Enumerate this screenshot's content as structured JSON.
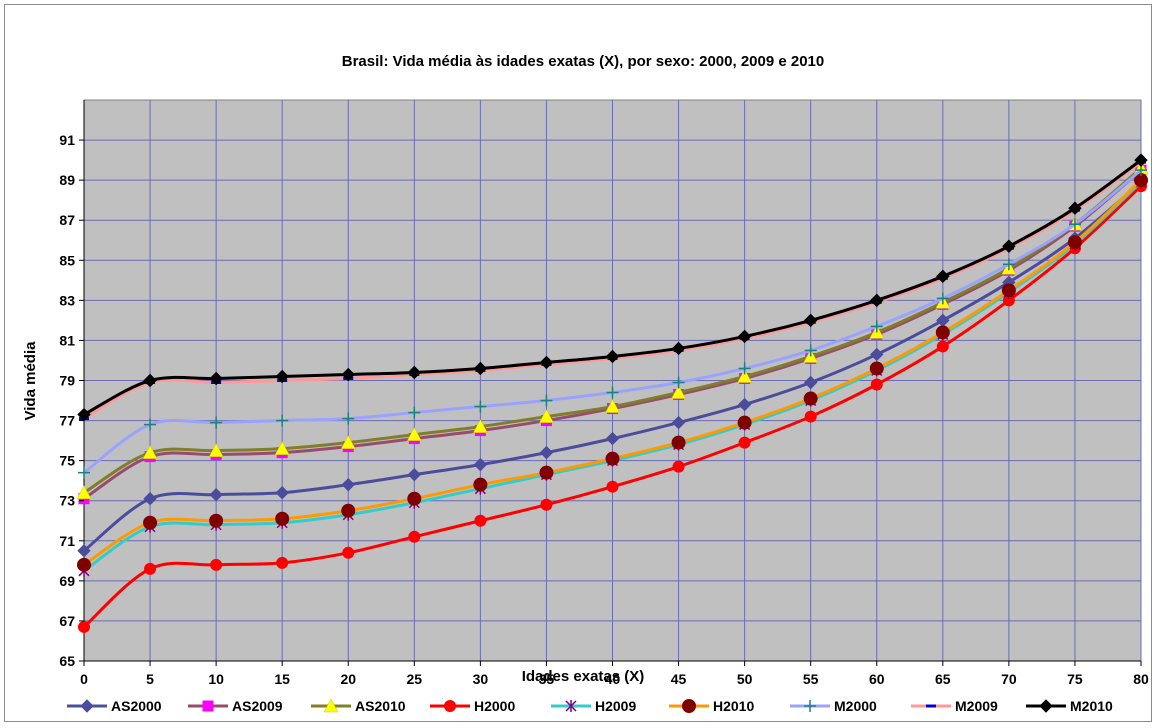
{
  "chart_data": {
    "type": "line",
    "title": "Brasil: Vida média às idades exatas (X), por sexo: 2000, 2009 e 2010",
    "xlabel": "Idades exatas (X)",
    "ylabel": "Vida média",
    "x": [
      0,
      5,
      10,
      15,
      20,
      25,
      30,
      35,
      40,
      45,
      50,
      55,
      60,
      65,
      70,
      75,
      80
    ],
    "xlim": [
      0,
      80
    ],
    "ylim": [
      65,
      93
    ],
    "yticks": [
      65,
      67,
      69,
      71,
      73,
      75,
      77,
      79,
      81,
      83,
      85,
      87,
      89,
      91
    ],
    "grid": true,
    "legend_position": "bottom",
    "series": [
      {
        "name": "AS2000",
        "color": "#4c4c9c",
        "marker": "diamond",
        "values": [
          70.5,
          73.1,
          73.3,
          73.4,
          73.8,
          74.3,
          74.8,
          75.4,
          76.1,
          76.9,
          77.8,
          78.9,
          80.3,
          82.0,
          83.9,
          86.1,
          88.9
        ]
      },
      {
        "name": "AS2009",
        "color": "#994a6e",
        "marker": "square",
        "values": [
          73.1,
          75.2,
          75.3,
          75.4,
          75.7,
          76.1,
          76.5,
          77.0,
          77.6,
          78.3,
          79.1,
          80.1,
          81.3,
          82.8,
          84.5,
          86.7,
          89.5
        ]
      },
      {
        "name": "AS2010",
        "color": "#7f7f2a",
        "marker": "triangle",
        "values": [
          73.4,
          75.4,
          75.5,
          75.6,
          75.9,
          76.3,
          76.7,
          77.2,
          77.7,
          78.4,
          79.2,
          80.2,
          81.4,
          82.9,
          84.6,
          86.8,
          89.6
        ]
      },
      {
        "name": "H2000",
        "color": "#ff0000",
        "marker": "circle",
        "values": [
          66.7,
          69.6,
          69.8,
          69.9,
          70.4,
          71.2,
          72.0,
          72.8,
          73.7,
          74.7,
          75.9,
          77.2,
          78.8,
          80.7,
          83.0,
          85.6,
          88.7
        ]
      },
      {
        "name": "H2009",
        "color": "#33cccc",
        "marker": "star",
        "values": [
          69.5,
          71.7,
          71.8,
          71.9,
          72.3,
          72.9,
          73.6,
          74.3,
          75.0,
          75.8,
          76.8,
          78.0,
          79.5,
          81.3,
          83.4,
          85.8,
          88.9
        ]
      },
      {
        "name": "H2010",
        "color": "#ff9900",
        "marker": "bigcircle",
        "values": [
          69.8,
          71.9,
          72.0,
          72.1,
          72.5,
          73.1,
          73.8,
          74.4,
          75.1,
          75.9,
          76.9,
          78.1,
          79.6,
          81.4,
          83.5,
          85.9,
          89.0
        ]
      },
      {
        "name": "M2000",
        "color": "#99a3ff",
        "marker": "plus",
        "values": [
          74.4,
          76.8,
          76.9,
          77.0,
          77.1,
          77.4,
          77.7,
          78.0,
          78.4,
          78.9,
          79.6,
          80.5,
          81.7,
          83.1,
          84.8,
          86.8,
          89.5
        ]
      },
      {
        "name": "M2009",
        "color": "#ff9999",
        "marker": "dash",
        "values": [
          77.1,
          78.9,
          78.9,
          79.0,
          79.1,
          79.3,
          79.5,
          79.8,
          80.1,
          80.5,
          81.1,
          81.9,
          82.9,
          84.1,
          85.6,
          87.5,
          89.9
        ]
      },
      {
        "name": "M2010",
        "color": "#000000",
        "marker": "diamond",
        "values": [
          77.3,
          79.0,
          79.1,
          79.2,
          79.3,
          79.4,
          79.6,
          79.9,
          80.2,
          80.6,
          81.2,
          82.0,
          83.0,
          84.2,
          85.7,
          87.6,
          90.0
        ]
      }
    ]
  }
}
